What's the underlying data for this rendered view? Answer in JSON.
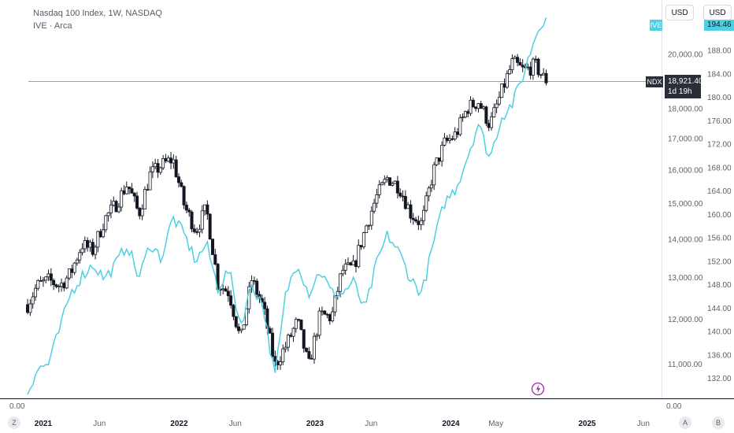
{
  "legend": {
    "main_series": "Nasdaq 100 Index, 1W, NASDAQ",
    "compare_series": "IVE · Arca"
  },
  "toolbar": {
    "currency_left": "USD",
    "currency_right": "USD"
  },
  "price_tags": {
    "ive_label": "IVE",
    "ive_value": "194.46",
    "ndx_label": "NDX",
    "ndx_value": "18,921.40",
    "ndx_countdown": "1d 19h"
  },
  "axis_footer": {
    "left_zero": "0.00",
    "right_zero": "0.00",
    "btn_z": "Z",
    "btn_a": "A",
    "btn_b": "B"
  },
  "colors": {
    "up": "#ffffff",
    "candle_border": "#131722",
    "down": "#131722",
    "compare_line": "#4dd0e1",
    "last_price_line": "#9aa0a8",
    "ndx_tag": "#2a2e39",
    "event_icon": "#9c27b0"
  },
  "chart_data": {
    "type": "candlestick",
    "interval": "1W",
    "x_range": [
      "2020-11",
      "2025-07"
    ],
    "x_tick_labels": [
      "2021",
      "Jun",
      "2022",
      "Jun",
      "2023",
      "Jun",
      "2024",
      "May",
      "2025",
      "Jun"
    ],
    "x_tick_dates": [
      "2021-01-01",
      "2021-06-01",
      "2022-01-01",
      "2022-06-01",
      "2023-01-01",
      "2023-06-01",
      "2024-01-01",
      "2024-05-01",
      "2025-01-01",
      "2025-06-01"
    ],
    "left_axis": {
      "label": "NDX",
      "ticks": [
        11000,
        12000,
        13000,
        14000,
        15000,
        16000,
        17000,
        18000,
        20000
      ],
      "tick_labels": [
        "11,000.00",
        "12,000.00",
        "13,000.00",
        "14,000.00",
        "15,000.00",
        "16,000.00",
        "17,000.00",
        "18,000.00",
        "20,000.00"
      ],
      "scale": "log",
      "range": [
        10300,
        22200
      ]
    },
    "right_axis": {
      "label": "IVE",
      "ticks": [
        132,
        136,
        140,
        144,
        148,
        152,
        156,
        160,
        164,
        168,
        172,
        176,
        180,
        184,
        188,
        192
      ],
      "tick_labels": [
        "132.00",
        "136.00",
        "140.00",
        "144.00",
        "148.00",
        "152.00",
        "156.00",
        "160.00",
        "164.00",
        "168.00",
        "172.00",
        "176.00",
        "180.00",
        "184.00",
        "188.00",
        "192.00"
      ],
      "range": [
        128.6,
        196.6
      ]
    },
    "ndx_monthly_closes": [
      [
        "2020-11",
        12250
      ],
      [
        "2020-12",
        12790
      ],
      [
        "2021-01",
        12930
      ],
      [
        "2021-02",
        12800
      ],
      [
        "2021-03",
        13090
      ],
      [
        "2021-04",
        13860
      ],
      [
        "2021-05",
        13690
      ],
      [
        "2021-06",
        14550
      ],
      [
        "2021-07",
        14960
      ],
      [
        "2021-08",
        15580
      ],
      [
        "2021-09",
        14690
      ],
      [
        "2021-10",
        15850
      ],
      [
        "2021-11",
        16140
      ],
      [
        "2021-12",
        16340
      ],
      [
        "2022-01",
        14930
      ],
      [
        "2022-02",
        14240
      ],
      [
        "2022-03",
        14840
      ],
      [
        "2022-04",
        12850
      ],
      [
        "2022-05",
        12640
      ],
      [
        "2022-06",
        11500
      ],
      [
        "2022-07",
        12950
      ],
      [
        "2022-08",
        12270
      ],
      [
        "2022-09",
        10970
      ],
      [
        "2022-10",
        11400
      ],
      [
        "2022-11",
        11950
      ],
      [
        "2022-12",
        10940
      ],
      [
        "2023-01",
        12100
      ],
      [
        "2023-02",
        12040
      ],
      [
        "2023-03",
        13180
      ],
      [
        "2023-04",
        13250
      ],
      [
        "2023-05",
        14250
      ],
      [
        "2023-06",
        15180
      ],
      [
        "2023-07",
        15760
      ],
      [
        "2023-08",
        15500
      ],
      [
        "2023-09",
        14720
      ],
      [
        "2023-10",
        14410
      ],
      [
        "2023-11",
        15950
      ],
      [
        "2023-12",
        16830
      ],
      [
        "2024-01",
        17140
      ],
      [
        "2024-02",
        18040
      ],
      [
        "2024-03",
        18250
      ],
      [
        "2024-04",
        17440
      ],
      [
        "2024-05",
        18540
      ],
      [
        "2024-06",
        19680
      ],
      [
        "2024-07",
        19360
      ],
      [
        "2024-08",
        19570
      ],
      [
        "2024-09",
        18921.4
      ]
    ],
    "ive_monthly_closes": [
      [
        "2020-11",
        128.9
      ],
      [
        "2020-12",
        133.5
      ],
      [
        "2021-01",
        134.5
      ],
      [
        "2021-02",
        140.5
      ],
      [
        "2021-03",
        146.5
      ],
      [
        "2021-04",
        149.5
      ],
      [
        "2021-05",
        151.5
      ],
      [
        "2021-06",
        149.0
      ],
      [
        "2021-07",
        151.5
      ],
      [
        "2021-08",
        155.0
      ],
      [
        "2021-09",
        149.0
      ],
      [
        "2021-10",
        155.0
      ],
      [
        "2021-11",
        152.5
      ],
      [
        "2021-12",
        159.5
      ],
      [
        "2022-01",
        156.5
      ],
      [
        "2022-02",
        152.0
      ],
      [
        "2022-03",
        155.0
      ],
      [
        "2022-04",
        147.5
      ],
      [
        "2022-05",
        150.5
      ],
      [
        "2022-06",
        141.0
      ],
      [
        "2022-07",
        148.0
      ],
      [
        "2022-08",
        144.5
      ],
      [
        "2022-09",
        132.0
      ],
      [
        "2022-10",
        146.5
      ],
      [
        "2022-11",
        152.0
      ],
      [
        "2022-12",
        146.5
      ],
      [
        "2023-01",
        150.5
      ],
      [
        "2023-02",
        146.5
      ],
      [
        "2023-03",
        146.5
      ],
      [
        "2023-04",
        148.5
      ],
      [
        "2023-05",
        143.5
      ],
      [
        "2023-06",
        151.5
      ],
      [
        "2023-07",
        156.5
      ],
      [
        "2023-08",
        153.5
      ],
      [
        "2023-09",
        149.0
      ],
      [
        "2023-10",
        146.5
      ],
      [
        "2023-11",
        155.0
      ],
      [
        "2023-12",
        162.0
      ],
      [
        "2024-01",
        164.5
      ],
      [
        "2024-02",
        170.0
      ],
      [
        "2024-03",
        175.5
      ],
      [
        "2024-04",
        169.5
      ],
      [
        "2024-05",
        176.5
      ],
      [
        "2024-06",
        179.0
      ],
      [
        "2024-07",
        184.0
      ],
      [
        "2024-08",
        190.5
      ],
      [
        "2024-09",
        194.46
      ]
    ],
    "last_price": 18921.4
  }
}
